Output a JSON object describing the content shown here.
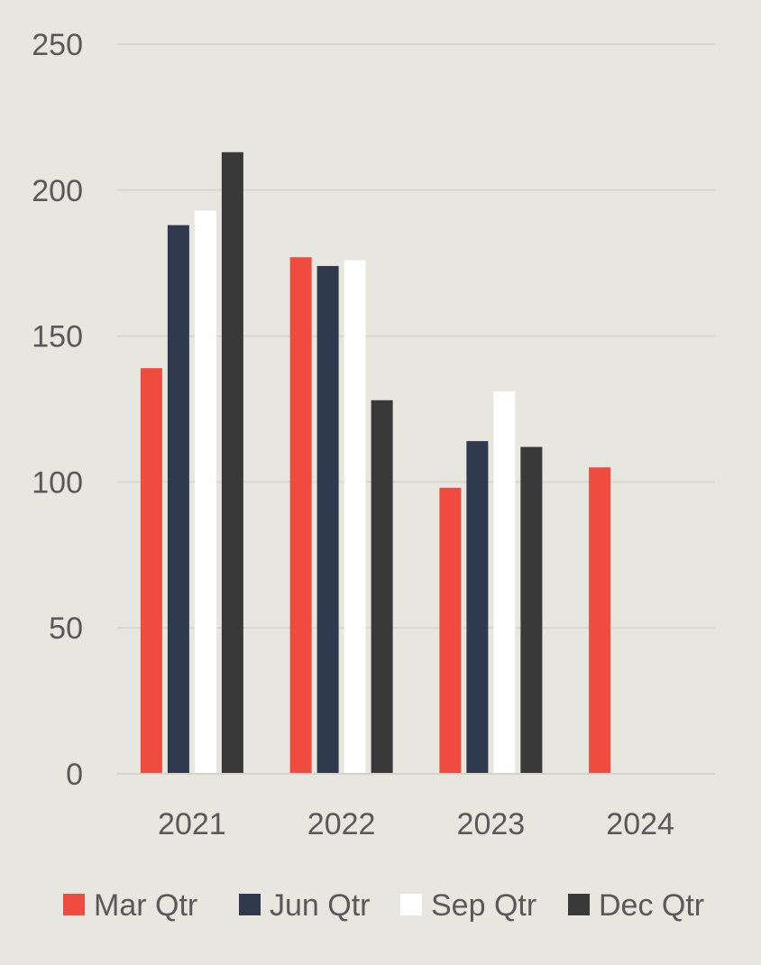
{
  "chart_data": {
    "type": "bar",
    "categories": [
      "2021",
      "2022",
      "2023",
      "2024"
    ],
    "series": [
      {
        "name": "Mar Qtr",
        "color": "#ef4b3f",
        "values": [
          139,
          177,
          98,
          105
        ]
      },
      {
        "name": "Jun Qtr",
        "color": "#2f3a4e",
        "values": [
          188,
          174,
          114,
          null
        ]
      },
      {
        "name": "Sep Qtr",
        "color": "#ffffff",
        "values": [
          193,
          176,
          131,
          null
        ]
      },
      {
        "name": "Dec Qtr",
        "color": "#393939",
        "values": [
          213,
          128,
          112,
          null
        ]
      }
    ],
    "ylim": [
      0,
      250
    ],
    "yticks": [
      0,
      50,
      100,
      150,
      200,
      250
    ],
    "grid": true,
    "legend": "bottom",
    "title": "",
    "xlabel": "",
    "ylabel": ""
  }
}
